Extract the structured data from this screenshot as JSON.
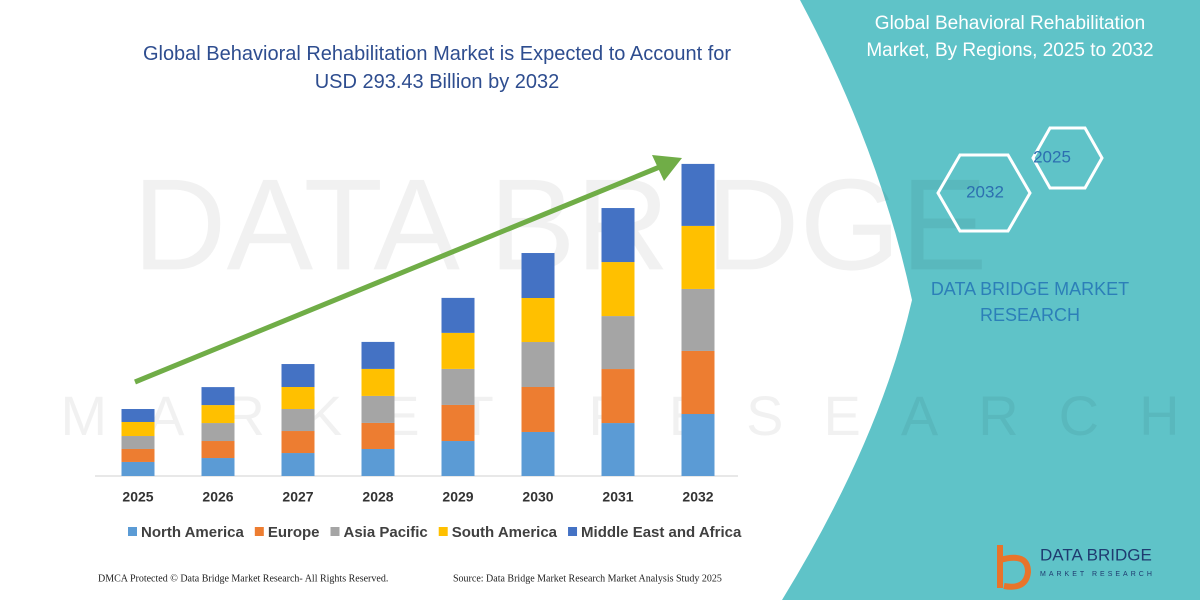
{
  "chart_data": {
    "type": "bar",
    "stacked": true,
    "title": "Global Behavioral Rehabilitation Market is Expected to Account for USD 293.43 Billion by 2032",
    "categories": [
      "2025",
      "2026",
      "2027",
      "2028",
      "2029",
      "2030",
      "2031",
      "2032"
    ],
    "series": [
      {
        "name": "North America",
        "color": "#5b9bd5",
        "values": [
          13.2,
          16.9,
          21.6,
          25.4,
          32.9,
          41.4,
          49.8,
          58.3
        ]
      },
      {
        "name": "Europe",
        "color": "#ed7d31",
        "values": [
          12.2,
          16.0,
          20.7,
          24.5,
          33.9,
          42.3,
          50.8,
          59.3
        ]
      },
      {
        "name": "Asia Pacific",
        "color": "#a5a5a5",
        "values": [
          12.2,
          16.9,
          20.7,
          25.4,
          33.9,
          42.3,
          49.8,
          58.3
        ]
      },
      {
        "name": "South America",
        "color": "#ffc000",
        "values": [
          13.2,
          16.9,
          20.7,
          25.4,
          33.9,
          41.4,
          50.8,
          59.3
        ]
      },
      {
        "name": "Middle East and Africa",
        "color": "#4472c4",
        "values": [
          12.2,
          16.9,
          21.6,
          25.4,
          32.9,
          42.3,
          50.8,
          58.3
        ]
      }
    ],
    "ylim": [
      0,
      300
    ],
    "legend": "bottom",
    "trend_arrow_color": "#70ad47"
  },
  "panel": {
    "title": "Global Behavioral Rehabilitation Market, By Regions, 2025 to 2032",
    "hexagons": [
      "2025",
      "2032"
    ],
    "brand": "DATA BRIDGE MARKET RESEARCH",
    "logo_name": "DATA BRIDGE",
    "logo_tagline": "MARKET RESEARCH"
  },
  "watermark": {
    "name": "DATA BRIDGE",
    "tagline": "MARKET RESEARCH"
  },
  "footer": {
    "left": "DMCA Protected © Data Bridge Market Research-  All Rights Reserved.",
    "right": "Source: Data Bridge Market Research  Market Analysis Study 2025"
  }
}
